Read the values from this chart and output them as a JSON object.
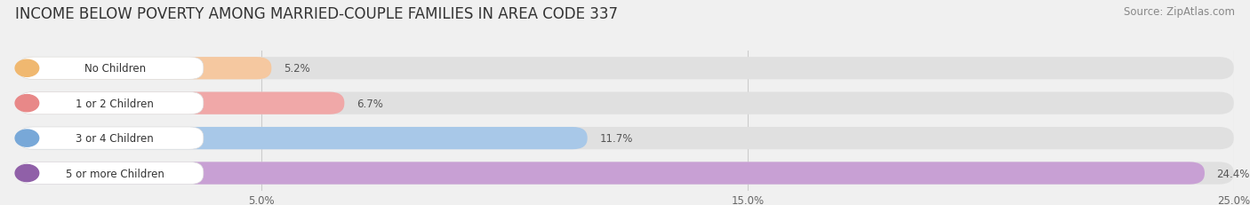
{
  "title": "INCOME BELOW POVERTY AMONG MARRIED-COUPLE FAMILIES IN AREA CODE 337",
  "source": "Source: ZipAtlas.com",
  "categories": [
    "No Children",
    "1 or 2 Children",
    "3 or 4 Children",
    "5 or more Children"
  ],
  "values": [
    5.2,
    6.7,
    11.7,
    24.4
  ],
  "bar_colors": [
    "#f5c8a0",
    "#f0a8a8",
    "#a8c8e8",
    "#c8a0d4"
  ],
  "label_dot_colors": [
    "#f0b870",
    "#e88888",
    "#78a8d8",
    "#9060a8"
  ],
  "xlim": [
    0,
    25.0
  ],
  "xticks": [
    5.0,
    15.0,
    25.0
  ],
  "xtick_labels": [
    "5.0%",
    "15.0%",
    "25.0%"
  ],
  "bg_color": "#f0f0f0",
  "bar_bg_color": "#e0e0e0",
  "title_fontsize": 12,
  "source_fontsize": 8.5,
  "bar_height": 0.68,
  "label_fontsize": 8.5,
  "value_fontsize": 8.5,
  "white_pill_color": "#ffffff"
}
